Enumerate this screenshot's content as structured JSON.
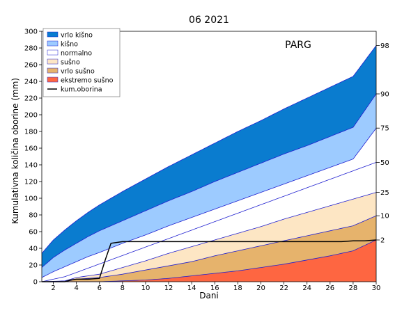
{
  "chart_data": {
    "type": "area",
    "title": "06 2021",
    "station": "PARG",
    "xlabel": "Dani",
    "ylabel": "Kumulativna količina oborine (mm)",
    "xlim": [
      1,
      30
    ],
    "ylim": [
      0,
      300
    ],
    "x_ticks": [
      2,
      4,
      6,
      8,
      10,
      12,
      14,
      16,
      18,
      20,
      22,
      24,
      26,
      28,
      30
    ],
    "y_ticks": [
      0,
      20,
      40,
      60,
      80,
      100,
      120,
      140,
      160,
      180,
      200,
      220,
      240,
      260,
      280,
      300
    ],
    "percentiles": [
      {
        "label": "98",
        "day30": 283
      },
      {
        "label": "90",
        "day30": 225
      },
      {
        "label": "75",
        "day30": 184
      },
      {
        "label": "50",
        "day30": 143
      },
      {
        "label": "25",
        "day30": 107
      },
      {
        "label": "10",
        "day30": 79
      },
      {
        "label": "2",
        "day30": 50
      }
    ],
    "series": [
      {
        "name": "p98",
        "x": [
          1,
          2,
          3,
          4,
          5,
          6,
          8,
          10,
          12,
          14,
          16,
          18,
          20,
          22,
          24,
          26,
          28,
          30
        ],
        "values": [
          34,
          50,
          62,
          73,
          83,
          92,
          108,
          123,
          138,
          152,
          166,
          180,
          193,
          207,
          220,
          233,
          246,
          283
        ]
      },
      {
        "name": "p90",
        "x": [
          1,
          2,
          3,
          4,
          5,
          6,
          8,
          10,
          12,
          14,
          16,
          18,
          20,
          22,
          24,
          26,
          28,
          30
        ],
        "values": [
          17,
          29,
          38,
          46,
          54,
          61,
          73,
          85,
          97,
          108,
          120,
          131,
          142,
          153,
          163,
          174,
          185,
          225
        ]
      },
      {
        "name": "p75",
        "x": [
          1,
          2,
          3,
          4,
          5,
          6,
          8,
          10,
          12,
          14,
          16,
          18,
          20,
          22,
          24,
          26,
          28,
          30
        ],
        "values": [
          5,
          12,
          18,
          24,
          30,
          35,
          46,
          56,
          67,
          77,
          87,
          97,
          107,
          117,
          127,
          137,
          147,
          184
        ]
      },
      {
        "name": "p50",
        "x": [
          1,
          3,
          30
        ],
        "values": [
          0,
          6,
          143
        ]
      },
      {
        "name": "p25",
        "x": [
          1,
          3,
          4,
          6,
          8,
          10,
          12,
          14,
          16,
          18,
          20,
          22,
          24,
          26,
          28,
          30
        ],
        "values": [
          0,
          1,
          5,
          9,
          17,
          25,
          34,
          42,
          50,
          58,
          66,
          75,
          83,
          91,
          99,
          107
        ]
      },
      {
        "name": "p10",
        "x": [
          1,
          3,
          4,
          6,
          8,
          10,
          12,
          14,
          16,
          18,
          20,
          22,
          24,
          26,
          28,
          30
        ],
        "values": [
          0,
          0,
          3,
          5,
          9,
          14,
          19,
          24,
          31,
          37,
          43,
          49,
          55,
          61,
          67,
          79
        ]
      },
      {
        "name": "p2",
        "x": [
          1,
          6,
          8,
          10,
          12,
          14,
          16,
          18,
          20,
          22,
          24,
          26,
          28,
          30
        ],
        "values": [
          0,
          0,
          1,
          2,
          4,
          7,
          10,
          13,
          17,
          21,
          26,
          31,
          37,
          50
        ]
      },
      {
        "name": "kum.oborina",
        "x": [
          1,
          2,
          3,
          3.5,
          4,
          5,
          6,
          6.5,
          7,
          8,
          9,
          10,
          15,
          20,
          25,
          27,
          28,
          29,
          30
        ],
        "values": [
          0,
          0,
          0,
          2,
          3,
          3,
          4,
          26,
          46,
          48,
          48,
          48,
          48,
          48,
          48,
          48,
          49,
          49,
          50
        ]
      }
    ],
    "legend": {
      "position": "top-left",
      "entries": [
        {
          "label": "vrlo kišno",
          "color": "#0a7ccf"
        },
        {
          "label": "kišno",
          "color": "#9dcbff"
        },
        {
          "label": "normalno",
          "color": "#ffffff"
        },
        {
          "label": "sušno",
          "color": "#fde6c4"
        },
        {
          "label": "vrlo sušno",
          "color": "#e6b36c"
        },
        {
          "label": "ekstremo sušno",
          "color": "#fe6641"
        },
        {
          "label": "kum.oborina",
          "color": "#000000"
        }
      ]
    },
    "grid": false
  }
}
